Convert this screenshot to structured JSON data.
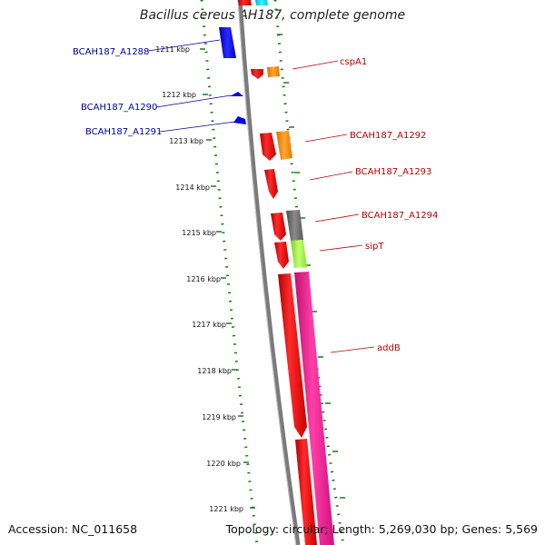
{
  "title": "Bacillus cereus AH187, complete genome",
  "footer": {
    "accession": "Accession: NC_011658",
    "summary": "Topology: circular; Length: 5,269,030 bp; Genes: 5,569"
  },
  "scale_ticks": [
    {
      "label": "1211 kbp"
    },
    {
      "label": "1212 kbp"
    },
    {
      "label": "1213 kbp"
    },
    {
      "label": "1214 kbp"
    },
    {
      "label": "1215 kbp"
    },
    {
      "label": "1216 kbp"
    },
    {
      "label": "1217 kbp"
    },
    {
      "label": "1218 kbp"
    },
    {
      "label": "1219 kbp"
    },
    {
      "label": "1220 kbp"
    },
    {
      "label": "1221 kbp"
    }
  ],
  "genes_left": [
    {
      "label": "BCAH187_A1288"
    },
    {
      "label": "BCAH187_A1290"
    },
    {
      "label": "BCAH187_A1291"
    }
  ],
  "genes_right": [
    {
      "label": "cspA1"
    },
    {
      "label": "BCAH187_A1292"
    },
    {
      "label": "BCAH187_A1293"
    },
    {
      "label": "BCAH187_A1294"
    },
    {
      "label": "sipT"
    },
    {
      "label": "addB"
    }
  ],
  "colors": {
    "backbone": "#808080",
    "tick_green": "#1a7a1a",
    "label_blue": "#00009c",
    "label_red": "#c00000",
    "gene_red": "#ff0000",
    "gene_blue": "#0000ff",
    "gene_orange": "#ff8c00",
    "gene_gray": "#707070",
    "gene_lime": "#a0f040",
    "gene_pink": "#ff1493",
    "gene_cyan": "#00e5ff"
  }
}
